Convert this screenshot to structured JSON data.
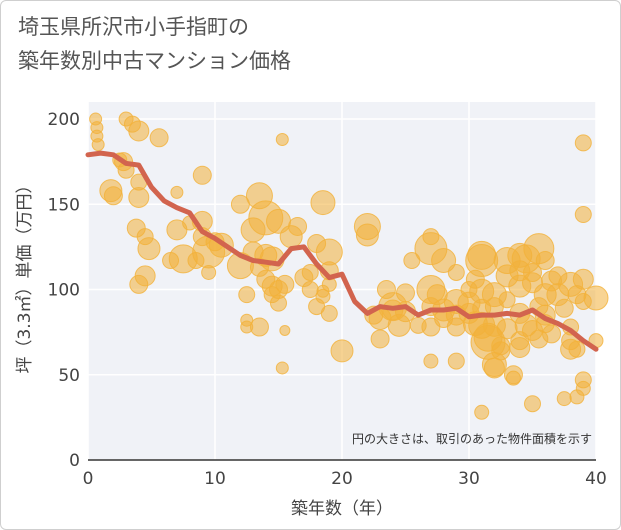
{
  "chart_data": {
    "type": "scatter",
    "title_lines": [
      "埼玉県所沢市小手指町の",
      "築年数別中古マンション価格"
    ],
    "xlabel": "築年数（年）",
    "ylabel": "坪（3.3㎡）単価（万円）",
    "note": "円の大きさは、取引のあった物件面積を示す",
    "xlim": [
      0,
      40
    ],
    "ylim": [
      0,
      210
    ],
    "xticks": [
      "0",
      "10",
      "20",
      "30",
      "40"
    ],
    "yticks": [
      "0",
      "50",
      "100",
      "150",
      "200"
    ],
    "grid": true,
    "colors": {
      "bubble": "#f3b13a",
      "trend": "#d2644e",
      "plot_bg": "#f0f2f7",
      "grid": "#ffffff"
    },
    "trend_line": {
      "x": [
        0,
        1,
        2,
        3,
        4,
        5,
        6,
        7,
        8,
        9,
        10,
        11,
        12,
        13,
        14,
        15,
        16,
        17,
        18,
        19,
        20,
        21,
        22,
        23,
        24,
        25,
        26,
        27,
        28,
        29,
        30,
        31,
        32,
        33,
        34,
        35,
        36,
        37,
        38,
        39,
        40
      ],
      "y": [
        179,
        180,
        179,
        174,
        173,
        160,
        152,
        148,
        145,
        134,
        130,
        125,
        120,
        117,
        116,
        115,
        124,
        125,
        115,
        107,
        109,
        93,
        86,
        90,
        89,
        90,
        85,
        88,
        88,
        89,
        84,
        85,
        85,
        86,
        85,
        88,
        83,
        80,
        76,
        70,
        65
      ]
    },
    "points": [
      [
        0.6,
        200,
        6
      ],
      [
        0.7,
        195,
        6
      ],
      [
        0.7,
        190,
        6
      ],
      [
        0.8,
        185,
        6
      ],
      [
        1.8,
        158,
        11
      ],
      [
        2.0,
        155,
        9
      ],
      [
        2.5,
        176,
        7
      ],
      [
        2.8,
        175,
        9
      ],
      [
        3.0,
        170,
        8
      ],
      [
        3.0,
        200,
        7
      ],
      [
        3.5,
        197,
        8
      ],
      [
        4.0,
        193,
        10
      ],
      [
        4.0,
        163,
        8
      ],
      [
        4.0,
        154,
        10
      ],
      [
        3.8,
        136,
        9
      ],
      [
        4.0,
        103,
        9
      ],
      [
        4.5,
        131,
        8
      ],
      [
        4.5,
        108,
        10
      ],
      [
        4.8,
        124,
        11
      ],
      [
        5.6,
        189,
        9
      ],
      [
        6.5,
        117,
        8
      ],
      [
        7.0,
        157,
        6
      ],
      [
        7.0,
        135,
        10
      ],
      [
        7.5,
        118,
        14
      ],
      [
        8.0,
        139,
        7
      ],
      [
        8.5,
        117,
        8
      ],
      [
        9.0,
        167,
        9
      ],
      [
        9.0,
        140,
        10
      ],
      [
        9.0,
        131,
        9
      ],
      [
        9.5,
        122,
        16
      ],
      [
        9.5,
        110,
        7
      ],
      [
        10.0,
        128,
        9
      ],
      [
        10.5,
        126,
        12
      ],
      [
        12.0,
        150,
        9
      ],
      [
        12.0,
        114,
        13
      ],
      [
        12.5,
        97,
        8
      ],
      [
        12.5,
        82,
        6
      ],
      [
        12.5,
        78,
        6
      ],
      [
        13.0,
        135,
        12
      ],
      [
        13.0,
        122,
        10
      ],
      [
        13.5,
        113,
        9
      ],
      [
        13.5,
        78,
        9
      ],
      [
        13.5,
        155,
        13
      ],
      [
        14.0,
        142,
        17
      ],
      [
        14.0,
        120,
        11
      ],
      [
        14.5,
        118,
        12
      ],
      [
        14.5,
        102,
        10
      ],
      [
        14.5,
        97,
        8
      ],
      [
        14.0,
        106,
        9
      ],
      [
        15.0,
        140,
        12
      ],
      [
        15.0,
        100,
        9
      ],
      [
        15.0,
        92,
        8
      ],
      [
        15.3,
        188,
        6
      ],
      [
        15.5,
        103,
        9
      ],
      [
        15.3,
        54,
        6
      ],
      [
        15.5,
        76,
        5
      ],
      [
        16.0,
        131,
        11
      ],
      [
        16.5,
        137,
        9
      ],
      [
        17.0,
        107,
        9
      ],
      [
        17.5,
        100,
        8
      ],
      [
        17.5,
        110,
        8
      ],
      [
        18.0,
        127,
        9
      ],
      [
        18.5,
        151,
        12
      ],
      [
        18.5,
        96,
        7
      ],
      [
        19.0,
        122,
        13
      ],
      [
        19.0,
        111,
        9
      ],
      [
        19.0,
        103,
        7
      ],
      [
        18.5,
        99,
        6
      ],
      [
        18.0,
        90,
        8
      ],
      [
        19.0,
        86,
        8
      ],
      [
        20.0,
        64,
        11
      ],
      [
        22.0,
        137,
        13
      ],
      [
        22.0,
        132,
        11
      ],
      [
        22.5,
        85,
        9
      ],
      [
        23.0,
        83,
        11
      ],
      [
        23.0,
        71,
        9
      ],
      [
        23.5,
        100,
        9
      ],
      [
        24.0,
        90,
        14
      ],
      [
        24.0,
        88,
        10
      ],
      [
        24.5,
        79,
        11
      ],
      [
        25.0,
        98,
        9
      ],
      [
        25.0,
        87,
        10
      ],
      [
        25.5,
        117,
        8
      ],
      [
        26.0,
        79,
        8
      ],
      [
        27.0,
        124,
        16
      ],
      [
        27.0,
        131,
        8
      ],
      [
        27.0,
        100,
        14
      ],
      [
        27.5,
        97,
        10
      ],
      [
        27.0,
        90,
        9
      ],
      [
        27.0,
        78,
        9
      ],
      [
        27.0,
        58,
        7
      ],
      [
        28.0,
        117,
        12
      ],
      [
        28.0,
        88,
        11
      ],
      [
        28.0,
        83,
        9
      ],
      [
        29.0,
        110,
        8
      ],
      [
        29.0,
        93,
        12
      ],
      [
        29.0,
        85,
        10
      ],
      [
        29.0,
        58,
        8
      ],
      [
        29.0,
        78,
        9
      ],
      [
        30.0,
        92,
        11
      ],
      [
        30.0,
        100,
        8
      ],
      [
        30.0,
        86,
        10
      ],
      [
        30.5,
        80,
        12
      ],
      [
        30.5,
        106,
        9
      ],
      [
        31.0,
        120,
        14
      ],
      [
        31.0,
        117,
        16
      ],
      [
        31.0,
        99,
        12
      ],
      [
        31.0,
        89,
        9
      ],
      [
        31.0,
        79,
        13
      ],
      [
        31.5,
        69,
        17
      ],
      [
        31.5,
        72,
        14
      ],
      [
        31.0,
        28,
        7
      ],
      [
        32.0,
        97,
        12
      ],
      [
        32.0,
        90,
        9
      ],
      [
        32.0,
        79,
        11
      ],
      [
        32.0,
        56,
        12
      ],
      [
        32.0,
        54,
        10
      ],
      [
        32.5,
        67,
        9
      ],
      [
        32.5,
        64,
        9
      ],
      [
        33.0,
        117,
        13
      ],
      [
        33.0,
        108,
        11
      ],
      [
        33.0,
        94,
        8
      ],
      [
        33.0,
        77,
        10
      ],
      [
        33.5,
        50,
        9
      ],
      [
        33.5,
        48,
        7
      ],
      [
        34.0,
        120,
        12
      ],
      [
        34.0,
        111,
        10
      ],
      [
        34.0,
        102,
        11
      ],
      [
        34.0,
        86,
        10
      ],
      [
        34.0,
        70,
        9
      ],
      [
        34.0,
        66,
        10
      ],
      [
        34.5,
        118,
        14
      ],
      [
        34.5,
        79,
        11
      ],
      [
        35.0,
        104,
        10
      ],
      [
        35.0,
        110,
        9
      ],
      [
        35.0,
        76,
        10
      ],
      [
        35.0,
        33,
        8
      ],
      [
        35.5,
        90,
        9
      ],
      [
        35.5,
        124,
        15
      ],
      [
        35.5,
        71,
        9
      ],
      [
        36.0,
        117,
        9
      ],
      [
        36.0,
        97,
        11
      ],
      [
        36.0,
        85,
        10
      ],
      [
        36.0,
        80,
        9
      ],
      [
        36.5,
        105,
        10
      ],
      [
        36.5,
        74,
        9
      ],
      [
        37.0,
        108,
        9
      ],
      [
        37.0,
        97,
        11
      ],
      [
        37.5,
        36,
        7
      ],
      [
        37.5,
        89,
        9
      ],
      [
        38.0,
        103,
        12
      ],
      [
        38.0,
        70,
        9
      ],
      [
        38.0,
        65,
        10
      ],
      [
        38.0,
        78,
        8
      ],
      [
        38.5,
        97,
        9
      ],
      [
        38.5,
        65,
        8
      ],
      [
        38.5,
        37,
        7
      ],
      [
        39.0,
        186,
        8
      ],
      [
        39.0,
        144,
        8
      ],
      [
        39.0,
        106,
        10
      ],
      [
        39.0,
        93,
        8
      ],
      [
        39.0,
        47,
        8
      ],
      [
        39.0,
        42,
        7
      ],
      [
        40.0,
        95,
        12
      ],
      [
        40.0,
        70,
        7
      ]
    ]
  }
}
